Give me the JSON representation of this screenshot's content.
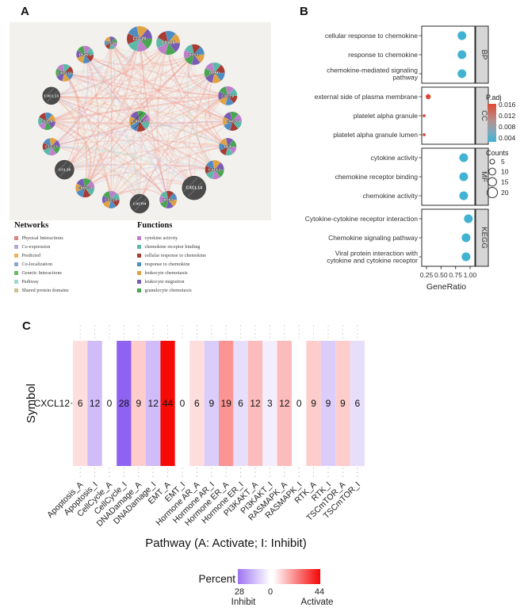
{
  "panels": {
    "a": {
      "label": "A",
      "network": {
        "center_gene": "CXCL12",
        "genes": [
          {
            "name": "CCL19",
            "size": 8,
            "dark": false
          },
          {
            "name": "CCL20",
            "size": 16,
            "dark": false
          },
          {
            "name": "CCL25",
            "size": 15,
            "dark": false
          },
          {
            "name": "XCL1",
            "size": 13,
            "dark": false
          },
          {
            "name": "PPBP",
            "size": 13,
            "dark": false
          },
          {
            "name": "CXCL9",
            "size": 12,
            "dark": false
          },
          {
            "name": "CXCL6",
            "size": 12,
            "dark": false
          },
          {
            "name": "PF4",
            "size": 11,
            "dark": false
          },
          {
            "name": "CXCL2",
            "size": 12,
            "dark": false
          },
          {
            "name": "CXCL14",
            "size": 15,
            "dark": true
          },
          {
            "name": "XCL2",
            "size": 11,
            "dark": false
          },
          {
            "name": "CXCR4",
            "size": 12,
            "dark": true
          },
          {
            "name": "CCL13",
            "size": 11,
            "dark": false
          },
          {
            "name": "CXCL10",
            "size": 12,
            "dark": false
          },
          {
            "name": "CCL28",
            "size": 12,
            "dark": true
          },
          {
            "name": "CCL27",
            "size": 11,
            "dark": false
          },
          {
            "name": "CCL26",
            "size": 11,
            "dark": false
          },
          {
            "name": "CXCL13",
            "size": 11,
            "dark": true
          },
          {
            "name": "CXCL11",
            "size": 11,
            "dark": false
          },
          {
            "name": "PF4V1",
            "size": 11,
            "dark": false
          }
        ],
        "function_colors": [
          "#bd7fca",
          "#5cb8a8",
          "#a63c34",
          "#4f8cc2",
          "#e0a243",
          "#7a5cb5",
          "#49a551"
        ]
      },
      "networks_legend": {
        "title": "Networks",
        "items": [
          {
            "label": "Physical Interactions",
            "color": "#e0837f"
          },
          {
            "label": "Co-expression",
            "color": "#b5a6d8"
          },
          {
            "label": "Predicted",
            "color": "#efb25c"
          },
          {
            "label": "Co-localization",
            "color": "#8aa7d4"
          },
          {
            "label": "Genetic Interactions",
            "color": "#66bb66"
          },
          {
            "label": "Pathway",
            "color": "#9fd6d2"
          },
          {
            "label": "Shared protein domains",
            "color": "#cfc08f"
          }
        ]
      },
      "functions_legend": {
        "title": "Functions",
        "items": [
          {
            "label": "cytokine activity",
            "color": "#bd7fca"
          },
          {
            "label": "chemokine receptor binding",
            "color": "#5cb8a8"
          },
          {
            "label": "cellular response to chemokine",
            "color": "#a63c34"
          },
          {
            "label": "response to chemokine",
            "color": "#4f8cc2"
          },
          {
            "label": "leukocyte chemotaxis",
            "color": "#e0a243"
          },
          {
            "label": "leukocyte migration",
            "color": "#7a5cb5"
          },
          {
            "label": "granulocyte chemotaxis",
            "color": "#49a551"
          }
        ]
      }
    },
    "b": {
      "label": "B"
    },
    "c": {
      "label": "C"
    }
  },
  "chart_data": [
    {
      "type": "scatter",
      "panel": "B",
      "xlabel": "GeneRatio",
      "x_ticks": [
        "0.25",
        "0.50",
        "0.75",
        "1.00"
      ],
      "x_range": [
        0.25,
        1.0
      ],
      "facets": [
        {
          "name": "BP",
          "rows": [
            {
              "lines": [
                "cellular response to chemokine"
              ],
              "gene_ratio": 0.86,
              "count": 15,
              "padj": 0.004,
              "r": 5.5,
              "color": "#41b2d2"
            },
            {
              "lines": [
                "response to chemokine"
              ],
              "gene_ratio": 0.86,
              "count": 15,
              "padj": 0.004,
              "r": 5.5,
              "color": "#41b2d2"
            },
            {
              "lines": [
                "chemokine-mediated signaling",
                "pathway"
              ],
              "gene_ratio": 0.86,
              "count": 15,
              "padj": 0.004,
              "r": 5.5,
              "color": "#41b2d2"
            }
          ]
        },
        {
          "name": "CC",
          "rows": [
            {
              "lines": [
                "external side of plasma membrane"
              ],
              "gene_ratio": 0.28,
              "count": 5,
              "padj": 0.016,
              "r": 3.2,
              "color": "#d84a35"
            },
            {
              "lines": [
                "platelet alpha granule"
              ],
              "gene_ratio": 0.21,
              "count": 3,
              "padj": 0.015,
              "r": 1.9,
              "color": "#d84a35"
            },
            {
              "lines": [
                "platelet alpha granule lumen"
              ],
              "gene_ratio": 0.21,
              "count": 3,
              "padj": 0.015,
              "r": 1.9,
              "color": "#d84a35"
            }
          ]
        },
        {
          "name": "MF",
          "rows": [
            {
              "lines": [
                "cytokine activity"
              ],
              "gene_ratio": 0.89,
              "count": 15,
              "padj": 0.004,
              "r": 5.5,
              "color": "#41b2d2"
            },
            {
              "lines": [
                "chemokine receptor binding"
              ],
              "gene_ratio": 0.89,
              "count": 15,
              "padj": 0.004,
              "r": 5.5,
              "color": "#41b2d2"
            },
            {
              "lines": [
                "chemokine activity"
              ],
              "gene_ratio": 0.89,
              "count": 15,
              "padj": 0.004,
              "r": 5.5,
              "color": "#41b2d2"
            }
          ]
        },
        {
          "name": "KEGG",
          "rows": [
            {
              "lines": [
                "Cytokine-cytokine receptor interaction"
              ],
              "gene_ratio": 0.97,
              "count": 15,
              "padj": 0.004,
              "r": 5.5,
              "color": "#41b2d2"
            },
            {
              "lines": [
                "Chemokine signaling pathway"
              ],
              "gene_ratio": 0.93,
              "count": 15,
              "padj": 0.004,
              "r": 5.5,
              "color": "#41b2d2"
            },
            {
              "lines": [
                "Viral protein interaction with",
                "cytokine and cytokine receptor"
              ],
              "gene_ratio": 0.93,
              "count": 15,
              "padj": 0.004,
              "r": 5.5,
              "color": "#41b2d2"
            }
          ]
        }
      ],
      "legend": {
        "padj": {
          "title": "P.adj",
          "ticks": [
            "0.016",
            "0.012",
            "0.008",
            "0.004"
          ],
          "top_color": "#dd4a32",
          "bottom_color": "#41b2d2"
        },
        "counts": {
          "title": "Counts",
          "ticks": [
            "5",
            "10",
            "15",
            "20"
          ],
          "radii": [
            3,
            4.4,
            5.4,
            6.5
          ]
        }
      }
    },
    {
      "type": "heatmap",
      "panel": "C",
      "ylabel": "Symbol",
      "xlabel": "Pathway (A: Activate; I: Inhibit)",
      "row_label": "CXCL12",
      "categories": [
        "Apoptosis_A",
        "Apoptosis_I",
        "CellCycle_A",
        "CellCycle_I",
        "DNADamage_A",
        "DNADamage_I",
        "EMT_A",
        "EMT_I",
        "Hormone AR_A",
        "Hormone AR_I",
        "Hormone ER_A",
        "Hormone ER_I",
        "PI3KAKT_A",
        "PI3KAKT_I",
        "RASMAPK_A",
        "RASMAPK_I",
        "RTK_A",
        "RTK_I",
        "TSCmTOR_A",
        "TSCmTOR_I"
      ],
      "values": [
        6,
        12,
        0,
        28,
        9,
        12,
        44,
        0,
        6,
        9,
        19,
        6,
        12,
        3,
        12,
        0,
        9,
        9,
        9,
        6
      ],
      "legend": {
        "title": "Percent",
        "left_value": "28",
        "left_label": "Inhibit",
        "mid_value": "0",
        "right_value": "44",
        "right_label": "Activate",
        "inhibit_max": 28,
        "activate_max": 44,
        "inhibit_color": "#8f63f2",
        "activate_color": "#f50505"
      }
    }
  ]
}
